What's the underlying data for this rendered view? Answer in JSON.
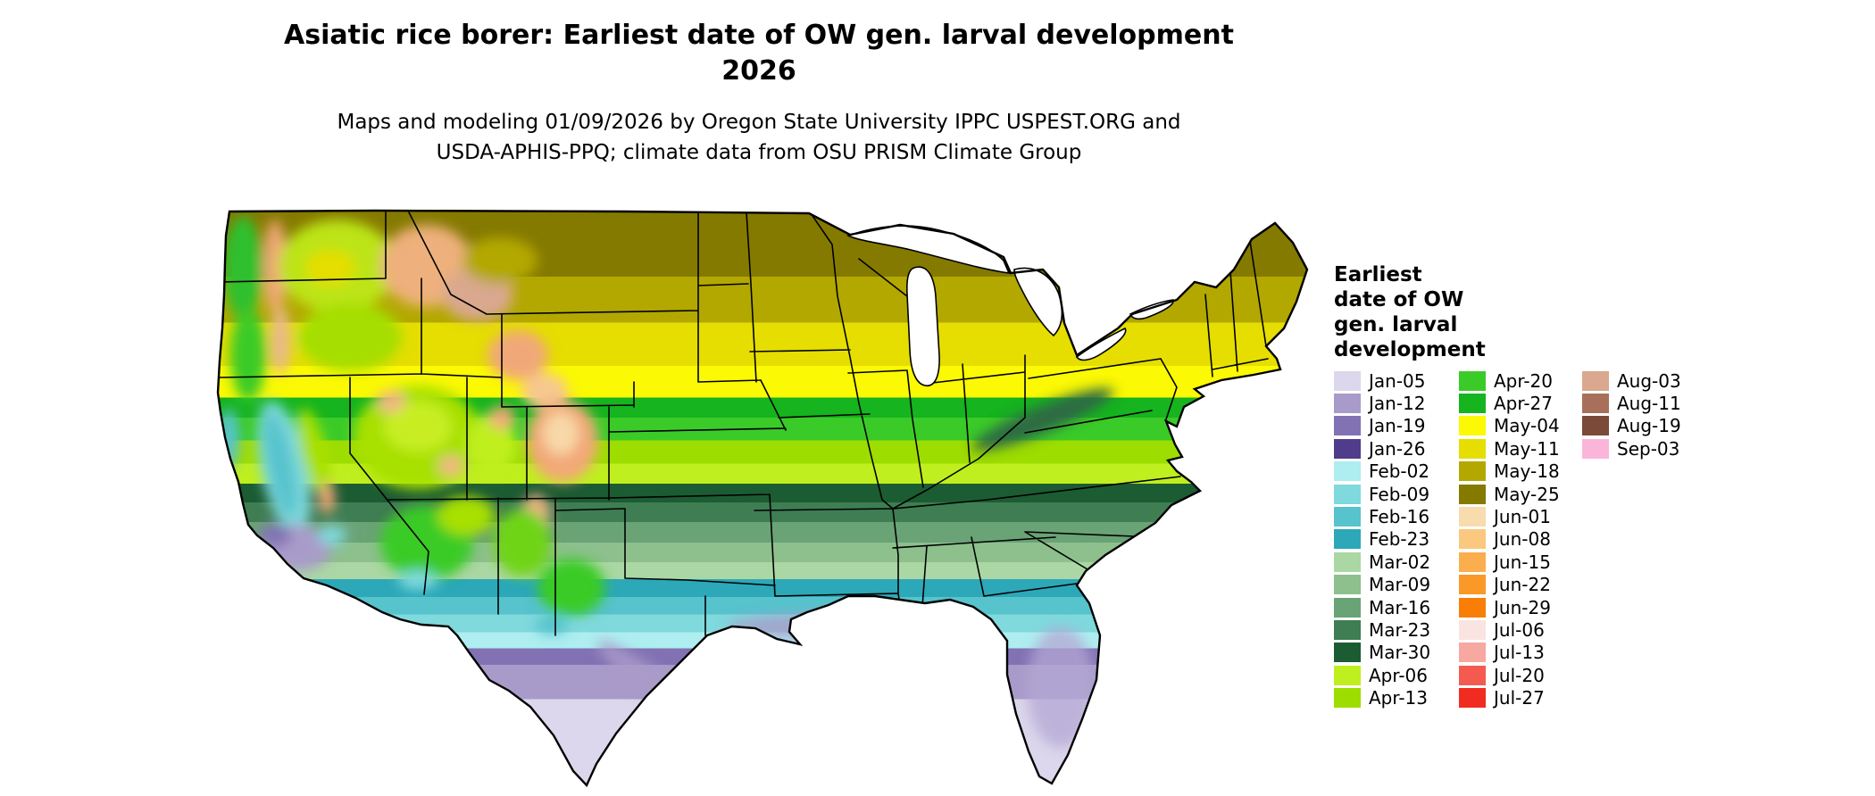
{
  "title": {
    "line1": "Asiatic rice borer: Earliest date of OW gen. larval development",
    "line2": "2026"
  },
  "subtitle": {
    "line1": "Maps and modeling 01/09/2026 by Oregon State University IPPC USPEST.ORG and",
    "line2": "USDA-APHIS-PPQ; climate data from OSU PRISM Climate Group"
  },
  "legend": {
    "title_lines": [
      "Earliest",
      "date of OW",
      "gen. larval",
      "development"
    ],
    "columns": [
      {
        "items": [
          {
            "label": "Jan-05",
            "color": "#dcd7ec"
          },
          {
            "label": "Jan-12",
            "color": "#a99bc9"
          },
          {
            "label": "Jan-19",
            "color": "#8272b4"
          },
          {
            "label": "Jan-26",
            "color": "#4f3d8c"
          },
          {
            "label": "Feb-02",
            "color": "#aeeef0"
          },
          {
            "label": "Feb-09",
            "color": "#7fd9dd"
          },
          {
            "label": "Feb-16",
            "color": "#56c3cd"
          },
          {
            "label": "Feb-23",
            "color": "#2ca8b8"
          },
          {
            "label": "Mar-02",
            "color": "#abd7a4"
          },
          {
            "label": "Mar-09",
            "color": "#8dc08d"
          },
          {
            "label": "Mar-16",
            "color": "#6aa376"
          },
          {
            "label": "Mar-23",
            "color": "#3f7d52"
          },
          {
            "label": "Mar-30",
            "color": "#1c5c33"
          },
          {
            "label": "Apr-06",
            "color": "#bfef1e"
          },
          {
            "label": "Apr-13",
            "color": "#9edd00"
          }
        ]
      },
      {
        "items": [
          {
            "label": "Apr-20",
            "color": "#3bcb28"
          },
          {
            "label": "Apr-27",
            "color": "#16b41e"
          },
          {
            "label": "May-04",
            "color": "#fbf903"
          },
          {
            "label": "May-11",
            "color": "#e5de00"
          },
          {
            "label": "May-18",
            "color": "#b3a800"
          },
          {
            "label": "May-25",
            "color": "#847a00"
          },
          {
            "label": "Jun-01",
            "color": "#f8dcae"
          },
          {
            "label": "Jun-08",
            "color": "#fac87e"
          },
          {
            "label": "Jun-15",
            "color": "#fbae4e"
          },
          {
            "label": "Jun-22",
            "color": "#fa9928"
          },
          {
            "label": "Jun-29",
            "color": "#f97e06"
          },
          {
            "label": "Jul-06",
            "color": "#f9e4e1"
          },
          {
            "label": "Jul-13",
            "color": "#f7a8a0"
          },
          {
            "label": "Jul-20",
            "color": "#f55a50"
          },
          {
            "label": "Jul-27",
            "color": "#f22b20"
          }
        ]
      },
      {
        "items": [
          {
            "label": "Aug-03",
            "color": "#d9a88e"
          },
          {
            "label": "Aug-11",
            "color": "#a8705a"
          },
          {
            "label": "Aug-19",
            "color": "#7c4a38"
          },
          {
            "label": "Sep-03",
            "color": "#fbb5d9"
          }
        ]
      }
    ]
  },
  "map": {
    "bands_top_to_bottom": [
      {
        "label": "May-25",
        "color": "#857a00",
        "to": 0.115
      },
      {
        "label": "May-18",
        "color": "#b3a800",
        "to": 0.195
      },
      {
        "label": "May-11",
        "color": "#e5de00",
        "to": 0.27
      },
      {
        "label": "May-04",
        "color": "#fbf903",
        "to": 0.325
      },
      {
        "label": "Apr-27",
        "color": "#16b41e",
        "to": 0.36
      },
      {
        "label": "Apr-20",
        "color": "#3bcb28",
        "to": 0.4
      },
      {
        "label": "Apr-13",
        "color": "#9edd00",
        "to": 0.44
      },
      {
        "label": "Apr-06",
        "color": "#bfef1e",
        "to": 0.475
      },
      {
        "label": "Mar-30",
        "color": "#1c5c33",
        "to": 0.508
      },
      {
        "label": "Mar-23",
        "color": "#3f7d52",
        "to": 0.542
      },
      {
        "label": "Mar-16",
        "color": "#6aa376",
        "to": 0.578
      },
      {
        "label": "Mar-09",
        "color": "#8dc08d",
        "to": 0.612
      },
      {
        "label": "Mar-02",
        "color": "#abd7a4",
        "to": 0.641
      },
      {
        "label": "Feb-23",
        "color": "#2ca8b8",
        "to": 0.672
      },
      {
        "label": "Feb-16",
        "color": "#56c3cd",
        "to": 0.703
      },
      {
        "label": "Feb-09",
        "color": "#7fd9dd",
        "to": 0.734
      },
      {
        "label": "Feb-02",
        "color": "#aeeef0",
        "to": 0.762
      },
      {
        "label": "Jan-19",
        "color": "#8272b4",
        "to": 0.79
      },
      {
        "label": "Jan-12",
        "color": "#a99bc9",
        "to": 0.85
      },
      {
        "label": "Jan-05",
        "color": "#dcd7ec",
        "to": 1.0
      }
    ]
  }
}
